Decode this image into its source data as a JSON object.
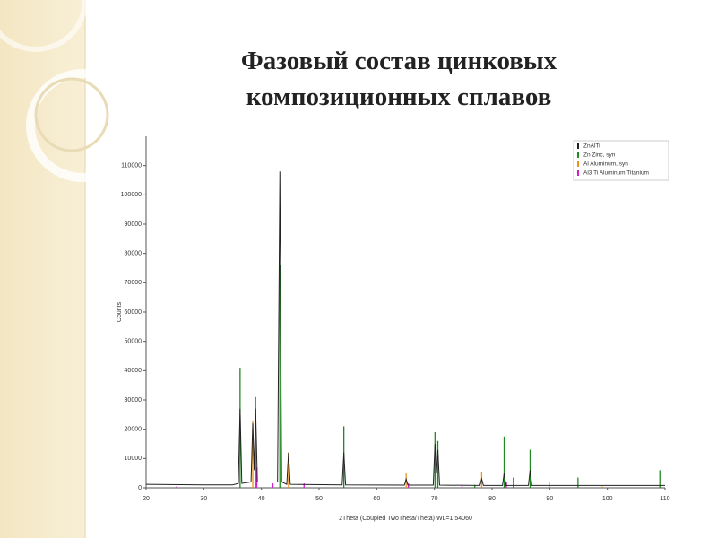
{
  "chart_data": {
    "type": "xrd",
    "title": "Фазовый состав цинковых композиционных сплавов",
    "x_label": "2Theta (Coupled TwoTheta/Theta) WL=1.54060",
    "y_label": "Counts",
    "xlim": [
      20,
      110
    ],
    "xticks": [
      20,
      30,
      40,
      50,
      60,
      70,
      80,
      90,
      100,
      110
    ],
    "ylim": [
      0,
      120000
    ],
    "yticks": [
      0,
      10000,
      20000,
      30000,
      40000,
      50000,
      60000,
      70000,
      80000,
      90000,
      100000,
      110000
    ],
    "legend": "top-right",
    "series": [
      {
        "name": "ZnAlTi",
        "color": "#222222",
        "mark": "line",
        "x": [
          20,
          30,
          35,
          36.0,
          36.3,
          36.6,
          38.2,
          38.5,
          38.75,
          39.0,
          39.3,
          42.8,
          43.2,
          43.5,
          44.4,
          44.7,
          45.0,
          54.0,
          54.3,
          54.6,
          64.8,
          65.1,
          65.4,
          69.8,
          70.1,
          70.35,
          70.6,
          70.9,
          77.9,
          78.2,
          78.5,
          81.8,
          82.1,
          82.4,
          86.3,
          86.6,
          86.9,
          110
        ],
        "values": [
          1200,
          1000,
          1000,
          1500,
          27000,
          1500,
          2000,
          22000,
          6000,
          27000,
          2000,
          2000,
          108000,
          2000,
          1200,
          12000,
          1200,
          1000,
          12000,
          1000,
          900,
          3000,
          900,
          900,
          15000,
          5000,
          13000,
          900,
          800,
          3000,
          800,
          800,
          5000,
          800,
          800,
          6000,
          800,
          800
        ]
      },
      {
        "name": "Zn Zinc, syn",
        "color": "#1f8a1f",
        "mark": "stick",
        "x": [
          36.3,
          38.99,
          43.2,
          54.3,
          70.1,
          70.6,
          77.0,
          82.1,
          83.7,
          86.6,
          89.9,
          94.9,
          109.1
        ],
        "values": [
          41000,
          31000,
          76000,
          21000,
          19000,
          16000,
          1000,
          17500,
          3500,
          13000,
          2000,
          3500,
          6000
        ]
      },
      {
        "name": "Al Aluminum, syn",
        "color": "#f0901c",
        "mark": "stick",
        "x": [
          38.5,
          44.7,
          65.1,
          78.2,
          82.4,
          99.1
        ],
        "values": [
          23000,
          12000,
          5000,
          5500,
          1500,
          500
        ]
      },
      {
        "name": "Al3 Ti Aluminum Titanium",
        "color": "#d020d0",
        "mark": "stick",
        "x": [
          25.3,
          39.2,
          42.0,
          47.4,
          65.5,
          74.8,
          82.5
        ],
        "values": [
          500,
          7000,
          1500,
          1500,
          1500,
          800,
          2000
        ]
      }
    ]
  }
}
